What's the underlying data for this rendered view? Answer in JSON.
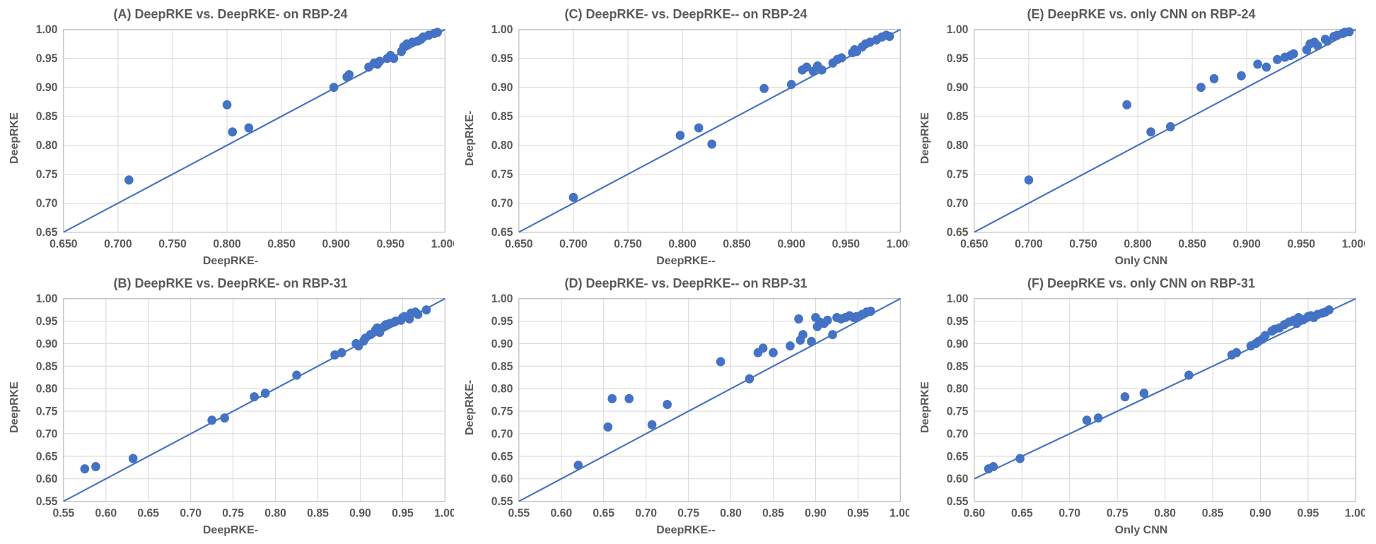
{
  "colors": {
    "point": "#4472c4",
    "line": "#4472c4",
    "grid": "#d9d9d9",
    "border": "#bfbfbf",
    "text": "#595959",
    "background": "#ffffff"
  },
  "marker_radius": 6,
  "line_width": 2,
  "title_fontsize": 18,
  "label_fontsize": 16,
  "tick_fontsize": 15,
  "panels": [
    {
      "id": "A",
      "title": "(A) DeepRKE vs. DeepRKE- on RBP-24",
      "xlabel": "DeepRKE-",
      "ylabel": "DeepRKE",
      "xlim": [
        0.65,
        1.0
      ],
      "ylim": [
        0.65,
        1.0
      ],
      "xticks": [
        0.65,
        0.7,
        0.75,
        0.8,
        0.85,
        0.9,
        0.95,
        1.0
      ],
      "yticks": [
        0.65,
        0.7,
        0.75,
        0.8,
        0.85,
        0.9,
        0.95,
        1.0
      ],
      "xtick_decimals": 3,
      "ytick_decimals": 2,
      "diagonal": true,
      "points": [
        [
          0.71,
          0.74
        ],
        [
          0.8,
          0.87
        ],
        [
          0.805,
          0.823
        ],
        [
          0.82,
          0.83
        ],
        [
          0.898,
          0.9
        ],
        [
          0.91,
          0.918
        ],
        [
          0.912,
          0.922
        ],
        [
          0.93,
          0.935
        ],
        [
          0.935,
          0.942
        ],
        [
          0.938,
          0.94
        ],
        [
          0.94,
          0.945
        ],
        [
          0.947,
          0.95
        ],
        [
          0.95,
          0.955
        ],
        [
          0.953,
          0.95
        ],
        [
          0.96,
          0.962
        ],
        [
          0.962,
          0.97
        ],
        [
          0.965,
          0.975
        ],
        [
          0.97,
          0.978
        ],
        [
          0.975,
          0.98
        ],
        [
          0.978,
          0.983
        ],
        [
          0.98,
          0.987
        ],
        [
          0.985,
          0.99
        ],
        [
          0.99,
          0.993
        ],
        [
          0.993,
          0.995
        ]
      ]
    },
    {
      "id": "C",
      "title": "(C) DeepRKE- vs. DeepRKE-- on RBP-24",
      "xlabel": "DeepRKE--",
      "ylabel": "DeepRKE-",
      "xlim": [
        0.65,
        1.0
      ],
      "ylim": [
        0.65,
        1.0
      ],
      "xticks": [
        0.65,
        0.7,
        0.75,
        0.8,
        0.85,
        0.9,
        0.95,
        1.0
      ],
      "yticks": [
        0.65,
        0.7,
        0.75,
        0.8,
        0.85,
        0.9,
        0.95,
        1.0
      ],
      "xtick_decimals": 3,
      "ytick_decimals": 2,
      "diagonal": true,
      "points": [
        [
          0.7,
          0.71
        ],
        [
          0.798,
          0.817
        ],
        [
          0.815,
          0.83
        ],
        [
          0.827,
          0.802
        ],
        [
          0.875,
          0.898
        ],
        [
          0.9,
          0.905
        ],
        [
          0.91,
          0.93
        ],
        [
          0.914,
          0.935
        ],
        [
          0.92,
          0.928
        ],
        [
          0.924,
          0.937
        ],
        [
          0.928,
          0.93
        ],
        [
          0.938,
          0.942
        ],
        [
          0.942,
          0.948
        ],
        [
          0.946,
          0.951
        ],
        [
          0.956,
          0.96
        ],
        [
          0.958,
          0.965
        ],
        [
          0.96,
          0.962
        ],
        [
          0.965,
          0.97
        ],
        [
          0.968,
          0.975
        ],
        [
          0.972,
          0.978
        ],
        [
          0.978,
          0.982
        ],
        [
          0.983,
          0.987
        ],
        [
          0.987,
          0.99
        ],
        [
          0.99,
          0.988
        ]
      ]
    },
    {
      "id": "E",
      "title": "(E) DeepRKE vs. only CNN on RBP-24",
      "xlabel": "Only CNN",
      "ylabel": "DeepRKE",
      "xlim": [
        0.65,
        1.0
      ],
      "ylim": [
        0.65,
        1.0
      ],
      "xticks": [
        0.65,
        0.7,
        0.75,
        0.8,
        0.85,
        0.9,
        0.95,
        1.0
      ],
      "yticks": [
        0.65,
        0.7,
        0.75,
        0.8,
        0.85,
        0.9,
        0.95,
        1.0
      ],
      "xtick_decimals": 3,
      "ytick_decimals": 2,
      "diagonal": true,
      "points": [
        [
          0.7,
          0.74
        ],
        [
          0.79,
          0.87
        ],
        [
          0.812,
          0.823
        ],
        [
          0.83,
          0.832
        ],
        [
          0.858,
          0.9
        ],
        [
          0.87,
          0.915
        ],
        [
          0.895,
          0.92
        ],
        [
          0.91,
          0.94
        ],
        [
          0.918,
          0.935
        ],
        [
          0.928,
          0.948
        ],
        [
          0.935,
          0.952
        ],
        [
          0.94,
          0.955
        ],
        [
          0.943,
          0.958
        ],
        [
          0.955,
          0.965
        ],
        [
          0.958,
          0.975
        ],
        [
          0.962,
          0.978
        ],
        [
          0.965,
          0.972
        ],
        [
          0.972,
          0.983
        ],
        [
          0.974,
          0.98
        ],
        [
          0.98,
          0.988
        ],
        [
          0.983,
          0.99
        ],
        [
          0.988,
          0.993
        ],
        [
          0.99,
          0.995
        ],
        [
          0.994,
          0.996
        ]
      ]
    },
    {
      "id": "B",
      "title": "(B) DeepRKE vs. DeepRKE- on RBP-31",
      "xlabel": "DeepRKE-",
      "ylabel": "DeepRKE",
      "xlim": [
        0.55,
        1.0
      ],
      "ylim": [
        0.55,
        1.0
      ],
      "xticks": [
        0.55,
        0.6,
        0.65,
        0.7,
        0.75,
        0.8,
        0.85,
        0.9,
        0.95,
        1.0
      ],
      "yticks": [
        0.55,
        0.6,
        0.65,
        0.7,
        0.75,
        0.8,
        0.85,
        0.9,
        0.95,
        1.0
      ],
      "xtick_decimals": 2,
      "ytick_decimals": 2,
      "diagonal": true,
      "points": [
        [
          0.575,
          0.622
        ],
        [
          0.588,
          0.627
        ],
        [
          0.632,
          0.645
        ],
        [
          0.725,
          0.73
        ],
        [
          0.74,
          0.735
        ],
        [
          0.775,
          0.782
        ],
        [
          0.788,
          0.79
        ],
        [
          0.825,
          0.83
        ],
        [
          0.87,
          0.875
        ],
        [
          0.878,
          0.88
        ],
        [
          0.895,
          0.9
        ],
        [
          0.898,
          0.895
        ],
        [
          0.904,
          0.906
        ],
        [
          0.906,
          0.912
        ],
        [
          0.912,
          0.92
        ],
        [
          0.918,
          0.93
        ],
        [
          0.92,
          0.935
        ],
        [
          0.923,
          0.925
        ],
        [
          0.928,
          0.938
        ],
        [
          0.93,
          0.942
        ],
        [
          0.935,
          0.945
        ],
        [
          0.94,
          0.948
        ],
        [
          0.942,
          0.95
        ],
        [
          0.948,
          0.952
        ],
        [
          0.95,
          0.958
        ],
        [
          0.952,
          0.96
        ],
        [
          0.958,
          0.955
        ],
        [
          0.96,
          0.968
        ],
        [
          0.965,
          0.97
        ],
        [
          0.968,
          0.965
        ],
        [
          0.978,
          0.975
        ]
      ]
    },
    {
      "id": "D",
      "title": "(D) DeepRKE- vs. DeepRKE-- on RBP-31",
      "xlabel": "DeepRKE--",
      "ylabel": "DeepRKE-",
      "xlim": [
        0.55,
        1.0
      ],
      "ylim": [
        0.55,
        1.0
      ],
      "xticks": [
        0.55,
        0.6,
        0.65,
        0.7,
        0.75,
        0.8,
        0.85,
        0.9,
        0.95,
        1.0
      ],
      "yticks": [
        0.55,
        0.6,
        0.65,
        0.7,
        0.75,
        0.8,
        0.85,
        0.9,
        0.95,
        1.0
      ],
      "xtick_decimals": 2,
      "ytick_decimals": 2,
      "diagonal": true,
      "points": [
        [
          0.62,
          0.63
        ],
        [
          0.655,
          0.715
        ],
        [
          0.66,
          0.778
        ],
        [
          0.68,
          0.778
        ],
        [
          0.707,
          0.72
        ],
        [
          0.725,
          0.765
        ],
        [
          0.788,
          0.86
        ],
        [
          0.822,
          0.822
        ],
        [
          0.832,
          0.88
        ],
        [
          0.838,
          0.89
        ],
        [
          0.85,
          0.88
        ],
        [
          0.87,
          0.895
        ],
        [
          0.88,
          0.955
        ],
        [
          0.882,
          0.908
        ],
        [
          0.885,
          0.92
        ],
        [
          0.895,
          0.905
        ],
        [
          0.9,
          0.958
        ],
        [
          0.902,
          0.938
        ],
        [
          0.905,
          0.948
        ],
        [
          0.91,
          0.945
        ],
        [
          0.914,
          0.952
        ],
        [
          0.92,
          0.92
        ],
        [
          0.925,
          0.958
        ],
        [
          0.93,
          0.955
        ],
        [
          0.935,
          0.958
        ],
        [
          0.94,
          0.962
        ],
        [
          0.945,
          0.958
        ],
        [
          0.948,
          0.96
        ],
        [
          0.955,
          0.965
        ],
        [
          0.96,
          0.97
        ],
        [
          0.965,
          0.972
        ]
      ]
    },
    {
      "id": "F",
      "title": "(F) DeepRKE vs. only CNN on RBP-31",
      "xlabel": "Only CNN",
      "ylabel": "DeepRKE",
      "xlim": [
        0.6,
        1.0
      ],
      "ylim": [
        0.55,
        1.0
      ],
      "xticks": [
        0.6,
        0.65,
        0.7,
        0.75,
        0.8,
        0.85,
        0.9,
        0.95,
        1.0
      ],
      "yticks": [
        0.55,
        0.6,
        0.65,
        0.7,
        0.75,
        0.8,
        0.85,
        0.9,
        0.95,
        1.0
      ],
      "xtick_decimals": 2,
      "ytick_decimals": 2,
      "diagonal": true,
      "points": [
        [
          0.615,
          0.622
        ],
        [
          0.62,
          0.627
        ],
        [
          0.648,
          0.645
        ],
        [
          0.718,
          0.73
        ],
        [
          0.73,
          0.735
        ],
        [
          0.758,
          0.782
        ],
        [
          0.778,
          0.79
        ],
        [
          0.825,
          0.83
        ],
        [
          0.87,
          0.875
        ],
        [
          0.875,
          0.88
        ],
        [
          0.89,
          0.895
        ],
        [
          0.895,
          0.9
        ],
        [
          0.898,
          0.905
        ],
        [
          0.902,
          0.91
        ],
        [
          0.905,
          0.918
        ],
        [
          0.912,
          0.928
        ],
        [
          0.915,
          0.932
        ],
        [
          0.92,
          0.935
        ],
        [
          0.925,
          0.942
        ],
        [
          0.93,
          0.948
        ],
        [
          0.935,
          0.952
        ],
        [
          0.938,
          0.945
        ],
        [
          0.94,
          0.958
        ],
        [
          0.945,
          0.953
        ],
        [
          0.95,
          0.96
        ],
        [
          0.953,
          0.962
        ],
        [
          0.956,
          0.958
        ],
        [
          0.96,
          0.965
        ],
        [
          0.965,
          0.968
        ],
        [
          0.968,
          0.97
        ],
        [
          0.972,
          0.975
        ]
      ]
    }
  ]
}
